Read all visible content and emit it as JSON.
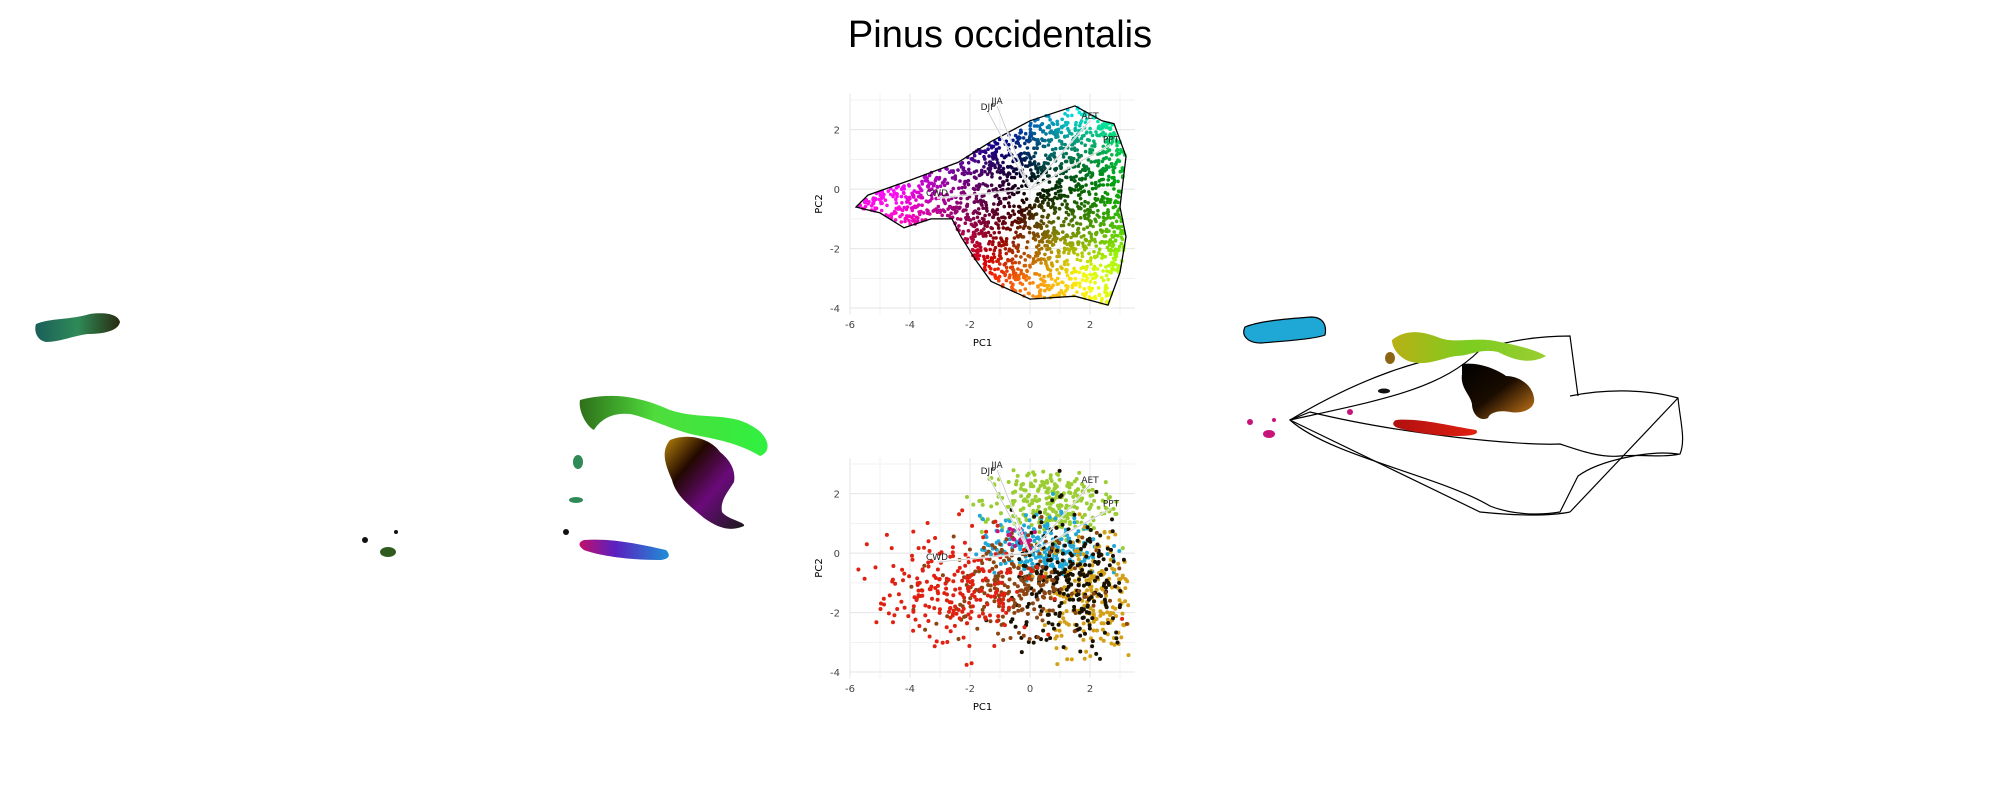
{
  "title": "Pinus occidentalis",
  "chart_data": [
    {
      "type": "scatter",
      "panel": "pca-top",
      "xlabel": "PC1",
      "ylabel": "PC2",
      "xlim": [
        -6,
        3.5
      ],
      "ylim": [
        -4.2,
        3.2
      ],
      "xticks": [
        "-6",
        "-4",
        "-2",
        "0",
        "2"
      ],
      "yticks": [
        "2",
        "0",
        "-2",
        "-4"
      ],
      "grid": true,
      "hull": [
        [
          -5.8,
          -0.6
        ],
        [
          -5.4,
          -0.2
        ],
        [
          -4.0,
          0.3
        ],
        [
          -2.4,
          0.9
        ],
        [
          -1.3,
          1.6
        ],
        [
          0.0,
          2.3
        ],
        [
          1.5,
          2.8
        ],
        [
          2.4,
          2.3
        ],
        [
          2.8,
          2.2
        ],
        [
          3.2,
          1.1
        ],
        [
          3.0,
          -0.6
        ],
        [
          3.2,
          -1.6
        ],
        [
          3.0,
          -2.8
        ],
        [
          2.6,
          -3.9
        ],
        [
          1.5,
          -3.6
        ],
        [
          0.0,
          -3.7
        ],
        [
          -1.3,
          -3.1
        ],
        [
          -1.8,
          -2.4
        ],
        [
          -2.3,
          -1.6
        ],
        [
          -2.6,
          -1.0
        ],
        [
          -3.3,
          -1.0
        ],
        [
          -4.2,
          -1.3
        ],
        [
          -5.0,
          -0.8
        ]
      ],
      "loadings": [
        {
          "name": "JJA",
          "x": -1.1,
          "y": 2.8
        },
        {
          "name": "DJF",
          "x": -1.4,
          "y": 2.6
        },
        {
          "name": "AET",
          "x": 2.0,
          "y": 2.3
        },
        {
          "name": "PPT",
          "x": 2.7,
          "y": 1.5
        },
        {
          "name": "CWD",
          "x": -3.1,
          "y": -0.3
        }
      ]
    },
    {
      "type": "scatter",
      "panel": "pca-bottom",
      "xlabel": "PC1",
      "ylabel": "PC2",
      "xlim": [
        -6,
        3.5
      ],
      "ylim": [
        -4.2,
        3.2
      ],
      "xticks": [
        "-6",
        "-4",
        "-2",
        "0",
        "2"
      ],
      "yticks": [
        "2",
        "0",
        "-2",
        "-4"
      ],
      "grid": true,
      "loadings": [
        {
          "name": "JJA",
          "x": -1.1,
          "y": 2.8
        },
        {
          "name": "DJF",
          "x": -1.4,
          "y": 2.6
        },
        {
          "name": "AET",
          "x": 2.0,
          "y": 2.3
        },
        {
          "name": "PPT",
          "x": 2.7,
          "y": 1.5
        },
        {
          "name": "CWD",
          "x": -3.1,
          "y": -0.3
        }
      ],
      "clusters": [
        {
          "color": "#9acd32",
          "cx": 0.6,
          "cy": 1.7,
          "sx": 1.1,
          "sy": 0.6,
          "n": 260
        },
        {
          "color": "#1fa7d6",
          "cx": 0.4,
          "cy": 0.2,
          "sx": 1.0,
          "sy": 0.5,
          "n": 220
        },
        {
          "color": "#d4a017",
          "cx": 2.0,
          "cy": -1.4,
          "sx": 0.8,
          "sy": 1.1,
          "n": 220
        },
        {
          "color": "#1a1200",
          "cx": 1.4,
          "cy": -1.2,
          "sx": 1.0,
          "sy": 1.2,
          "n": 260
        },
        {
          "color": "#8b4513",
          "cx": -0.6,
          "cy": -1.0,
          "sx": 1.2,
          "sy": 0.8,
          "n": 220
        },
        {
          "color": "#e02010",
          "cx": -2.5,
          "cy": -1.3,
          "sx": 1.3,
          "sy": 1.0,
          "n": 240
        },
        {
          "color": "#c8147a",
          "cx": -0.4,
          "cy": 0.5,
          "sx": 0.3,
          "sy": 0.2,
          "n": 20
        }
      ]
    }
  ],
  "maps": {
    "right_colors": [
      "#9acd32",
      "#1fa7d6",
      "#1a1200",
      "#c8147a",
      "#cc1a10",
      "#8b4513"
    ]
  }
}
